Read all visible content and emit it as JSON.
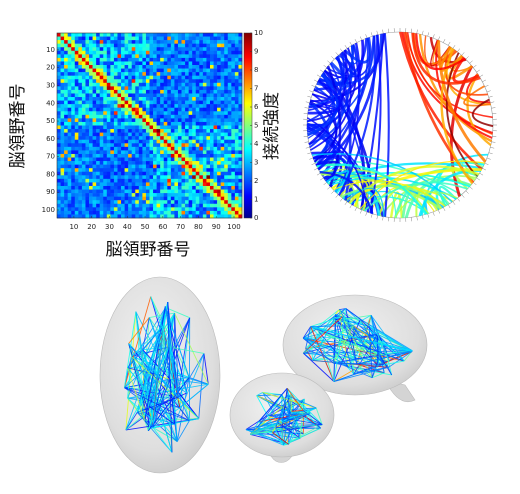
{
  "heatmap": {
    "type": "heatmap",
    "x_label": "脳領野番号",
    "y_label": "脳領野番号",
    "xlim": [
      0.5,
      104.5
    ],
    "ylim": [
      0.5,
      104.5
    ],
    "x_ticks": [
      10,
      20,
      30,
      40,
      50,
      60,
      70,
      80,
      90,
      100
    ],
    "y_ticks": [
      10,
      20,
      30,
      40,
      50,
      60,
      70,
      80,
      90,
      100
    ],
    "colorbar_label": "接続強度",
    "colorbar_range": [
      0,
      10
    ],
    "colorbar_ticks": [
      0,
      1,
      2,
      3,
      4,
      5,
      6,
      7,
      8,
      9,
      10
    ]
  }
}
